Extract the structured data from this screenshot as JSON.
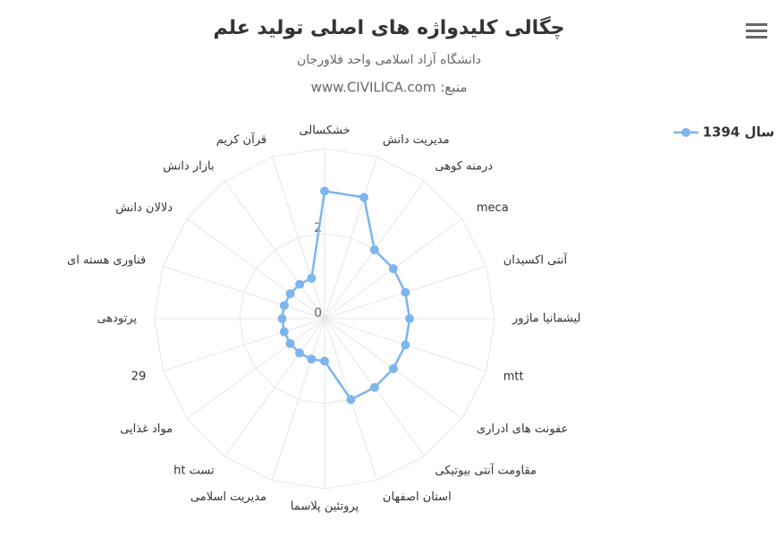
{
  "chart_data": {
    "type": "radar",
    "title": "چگالی کلیدواژه های اصلی تولید علم",
    "subtitle": "دانشگاه آزاد اسلامی واحد فلاورجان",
    "source": "منبع: www.CIVILICA.com",
    "categories": [
      "خشکسالی",
      "مدیریت دانش",
      "درمنه کوهی",
      "meca",
      "آنتی اکسیدان",
      "لیشمانیا ماژور",
      "mtt",
      "عفونت های ادراری",
      "مقاومت آنتی بیوتیکی",
      "استان اصفهان",
      "پروتئین پلاسما",
      "مدیریت اسلامی",
      "ht تست",
      "مواد غذایی",
      "29",
      "پرتودهی",
      "فناوری هسته ای",
      "دلالان دانش",
      "بازار دانش",
      "قرآن کریم"
    ],
    "series": [
      {
        "name": "سال 1394",
        "color": "#7cb5ec",
        "values": [
          3,
          3,
          2,
          2,
          2,
          2,
          2,
          2,
          2,
          2,
          1,
          1,
          1,
          1,
          1,
          1,
          1,
          1,
          1,
          1
        ]
      }
    ],
    "ylim": [
      0,
      4
    ],
    "yticks": [
      0,
      2
    ],
    "grid": true,
    "legend": "right"
  }
}
